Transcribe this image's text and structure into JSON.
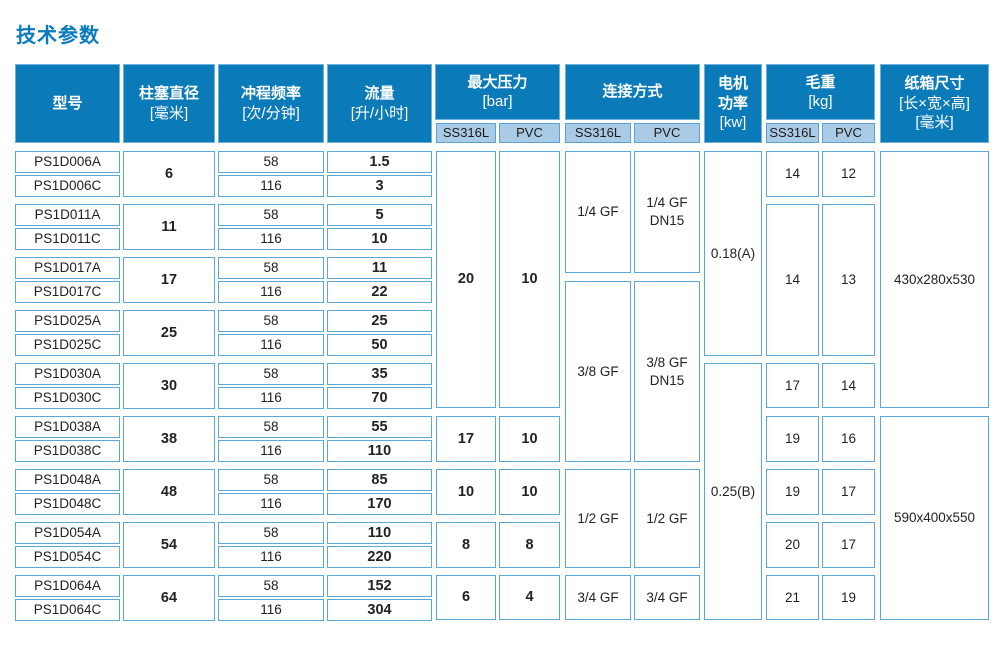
{
  "title": "技术参数",
  "headers": {
    "model": "型号",
    "plunger": [
      "柱塞直径",
      "[毫米]"
    ],
    "stroke": [
      "冲程频率",
      "[次/分钟]"
    ],
    "flow": [
      "流量",
      "[升/小时]"
    ],
    "pressure": [
      "最大压力",
      "[bar]"
    ],
    "connection": "连接方式",
    "motor": [
      "电机",
      "功率",
      "[kw]"
    ],
    "weight": [
      "毛重",
      "[kg]"
    ],
    "carton": [
      "纸箱尺寸",
      "[长×宽×高]",
      "[毫米]"
    ],
    "sub_ss": "SS316L",
    "sub_pvc": "PVC"
  },
  "rows": [
    {
      "model": "PS1D006A",
      "stroke": "58",
      "flow": "1.5"
    },
    {
      "model": "PS1D006C",
      "stroke": "116",
      "flow": "3"
    },
    {
      "model": "PS1D011A",
      "stroke": "58",
      "flow": "5"
    },
    {
      "model": "PS1D011C",
      "stroke": "116",
      "flow": "10"
    },
    {
      "model": "PS1D017A",
      "stroke": "58",
      "flow": "11"
    },
    {
      "model": "PS1D017C",
      "stroke": "116",
      "flow": "22"
    },
    {
      "model": "PS1D025A",
      "stroke": "58",
      "flow": "25"
    },
    {
      "model": "PS1D025C",
      "stroke": "116",
      "flow": "50"
    },
    {
      "model": "PS1D030A",
      "stroke": "58",
      "flow": "35"
    },
    {
      "model": "PS1D030C",
      "stroke": "116",
      "flow": "70"
    },
    {
      "model": "PS1D038A",
      "stroke": "58",
      "flow": "55"
    },
    {
      "model": "PS1D038C",
      "stroke": "116",
      "flow": "110"
    },
    {
      "model": "PS1D048A",
      "stroke": "58",
      "flow": "85"
    },
    {
      "model": "PS1D048C",
      "stroke": "116",
      "flow": "170"
    },
    {
      "model": "PS1D054A",
      "stroke": "58",
      "flow": "110"
    },
    {
      "model": "PS1D054C",
      "stroke": "116",
      "flow": "220"
    },
    {
      "model": "PS1D064A",
      "stroke": "58",
      "flow": "152"
    },
    {
      "model": "PS1D064C",
      "stroke": "116",
      "flow": "304"
    }
  ],
  "plunger": [
    "6",
    "11",
    "17",
    "25",
    "30",
    "38",
    "48",
    "54",
    "64"
  ],
  "pressure_ss": [
    "20",
    "17",
    "10",
    "8",
    "6"
  ],
  "pressure_pvc": [
    "10",
    "10",
    "10",
    "8",
    "4"
  ],
  "connection_ss": [
    "1/4 GF",
    "3/8 GF",
    "1/2 GF",
    "3/4 GF"
  ],
  "connection_pvc": [
    "1/4 GF\nDN15",
    "3/8 GF\nDN15",
    "1/2 GF",
    "3/4 GF"
  ],
  "motor": [
    "0.18(A)",
    "0.25(B)"
  ],
  "weight_ss": [
    "14",
    "14",
    "17",
    "19",
    "19",
    "20",
    "21"
  ],
  "weight_pvc": [
    "12",
    "13",
    "14",
    "16",
    "17",
    "17",
    "19"
  ],
  "carton": [
    "430x280x530",
    "590x400x550"
  ]
}
